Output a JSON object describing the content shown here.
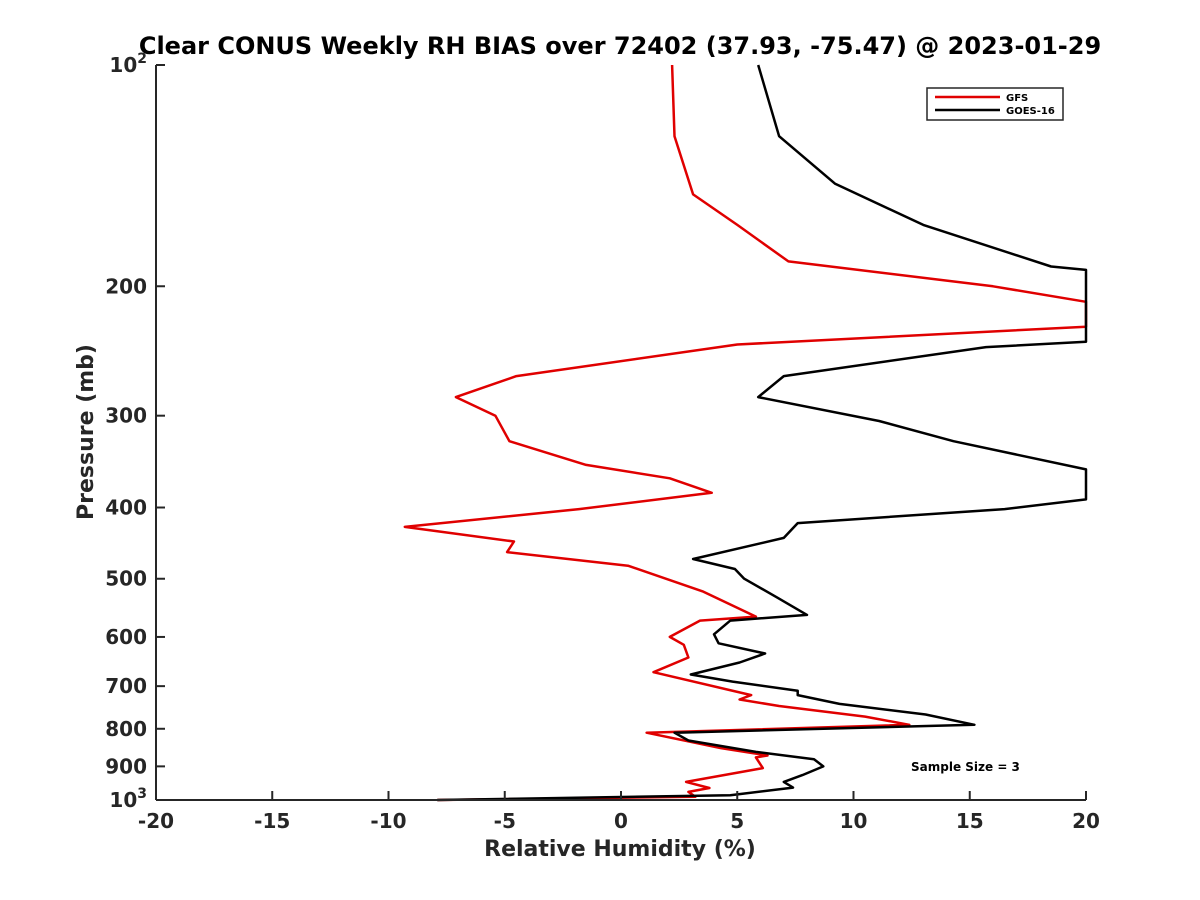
{
  "chart_data": {
    "type": "line",
    "title": "Clear CONUS Weekly RH BIAS over 72402 (37.93, -75.47) @ 2023-01-29",
    "xlabel": "Relative Humidity (%)",
    "ylabel": "Pressure (mb)",
    "xlim": [
      -20,
      20
    ],
    "ylim": [
      100,
      1000
    ],
    "yscale": "log",
    "y_reversed": true,
    "grid": false,
    "legend_position": "top-right",
    "xticks": [
      -20,
      -15,
      -10,
      -5,
      0,
      5,
      10,
      15,
      20
    ],
    "xtick_labels": [
      "-20",
      "-15",
      "-10",
      "-5",
      "0",
      "5",
      "10",
      "15",
      "20"
    ],
    "yticks": [
      {
        "value": 100,
        "base": "10",
        "exp": "2"
      },
      {
        "value": 200,
        "label": "200"
      },
      {
        "value": 300,
        "label": "300"
      },
      {
        "value": 400,
        "label": "400"
      },
      {
        "value": 500,
        "label": "500"
      },
      {
        "value": 600,
        "label": "600"
      },
      {
        "value": 700,
        "label": "700"
      },
      {
        "value": 800,
        "label": "800"
      },
      {
        "value": 900,
        "label": "900"
      },
      {
        "value": 1000,
        "base": "10",
        "exp": "3"
      }
    ],
    "series": [
      {
        "name": "GFS",
        "color": "#e00000",
        "points": [
          [
            2.2,
            100
          ],
          [
            2.3,
            125
          ],
          [
            3.1,
            150
          ],
          [
            5.0,
            165
          ],
          [
            7.2,
            185
          ],
          [
            16.0,
            200
          ],
          [
            20.0,
            210
          ],
          [
            20.0,
            227
          ],
          [
            5.0,
            240
          ],
          [
            -4.5,
            265
          ],
          [
            -7.1,
            283
          ],
          [
            -5.4,
            300
          ],
          [
            -4.8,
            325
          ],
          [
            -1.5,
            350
          ],
          [
            2.1,
            365
          ],
          [
            3.9,
            382
          ],
          [
            -1.8,
            402
          ],
          [
            -9.3,
            425
          ],
          [
            -4.6,
            445
          ],
          [
            -4.9,
            460
          ],
          [
            0.3,
            480
          ],
          [
            3.5,
            520
          ],
          [
            5.8,
            563
          ],
          [
            3.4,
            570
          ],
          [
            2.1,
            600
          ],
          [
            2.7,
            615
          ],
          [
            2.9,
            640
          ],
          [
            1.4,
            670
          ],
          [
            5.6,
            720
          ],
          [
            5.1,
            730
          ],
          [
            6.8,
            745
          ],
          [
            10.5,
            770
          ],
          [
            12.4,
            790
          ],
          [
            1.1,
            810
          ],
          [
            4.3,
            850
          ],
          [
            6.3,
            870
          ],
          [
            5.8,
            875
          ],
          [
            6.1,
            905
          ],
          [
            2.8,
            945
          ],
          [
            3.8,
            963
          ],
          [
            2.9,
            975
          ],
          [
            3.2,
            990
          ],
          [
            -7.9,
            1000
          ]
        ]
      },
      {
        "name": "GOES-16",
        "color": "#000000",
        "points": [
          [
            5.9,
            100
          ],
          [
            6.8,
            125
          ],
          [
            9.2,
            145
          ],
          [
            13.0,
            165
          ],
          [
            18.5,
            188
          ],
          [
            20.0,
            190
          ],
          [
            20.0,
            238
          ],
          [
            15.7,
            242
          ],
          [
            7.0,
            265
          ],
          [
            5.9,
            283
          ],
          [
            11.1,
            305
          ],
          [
            14.3,
            325
          ],
          [
            20.0,
            355
          ],
          [
            20.0,
            390
          ],
          [
            16.5,
            402
          ],
          [
            7.6,
            420
          ],
          [
            7.0,
            440
          ],
          [
            3.1,
            470
          ],
          [
            4.9,
            485
          ],
          [
            5.3,
            500
          ],
          [
            6.7,
            530
          ],
          [
            8.0,
            560
          ],
          [
            4.7,
            570
          ],
          [
            4.0,
            595
          ],
          [
            4.2,
            612
          ],
          [
            6.2,
            632
          ],
          [
            5.1,
            650
          ],
          [
            3.0,
            675
          ],
          [
            4.8,
            690
          ],
          [
            7.6,
            710
          ],
          [
            7.6,
            720
          ],
          [
            9.4,
            740
          ],
          [
            13.1,
            765
          ],
          [
            15.2,
            790
          ],
          [
            2.3,
            810
          ],
          [
            2.9,
            830
          ],
          [
            5.8,
            860
          ],
          [
            8.3,
            880
          ],
          [
            8.7,
            900
          ],
          [
            7.8,
            925
          ],
          [
            7.0,
            945
          ],
          [
            7.4,
            962
          ],
          [
            4.7,
            985
          ],
          [
            -7.9,
            1000
          ]
        ]
      }
    ],
    "annotation": "Sample Size = 3"
  }
}
